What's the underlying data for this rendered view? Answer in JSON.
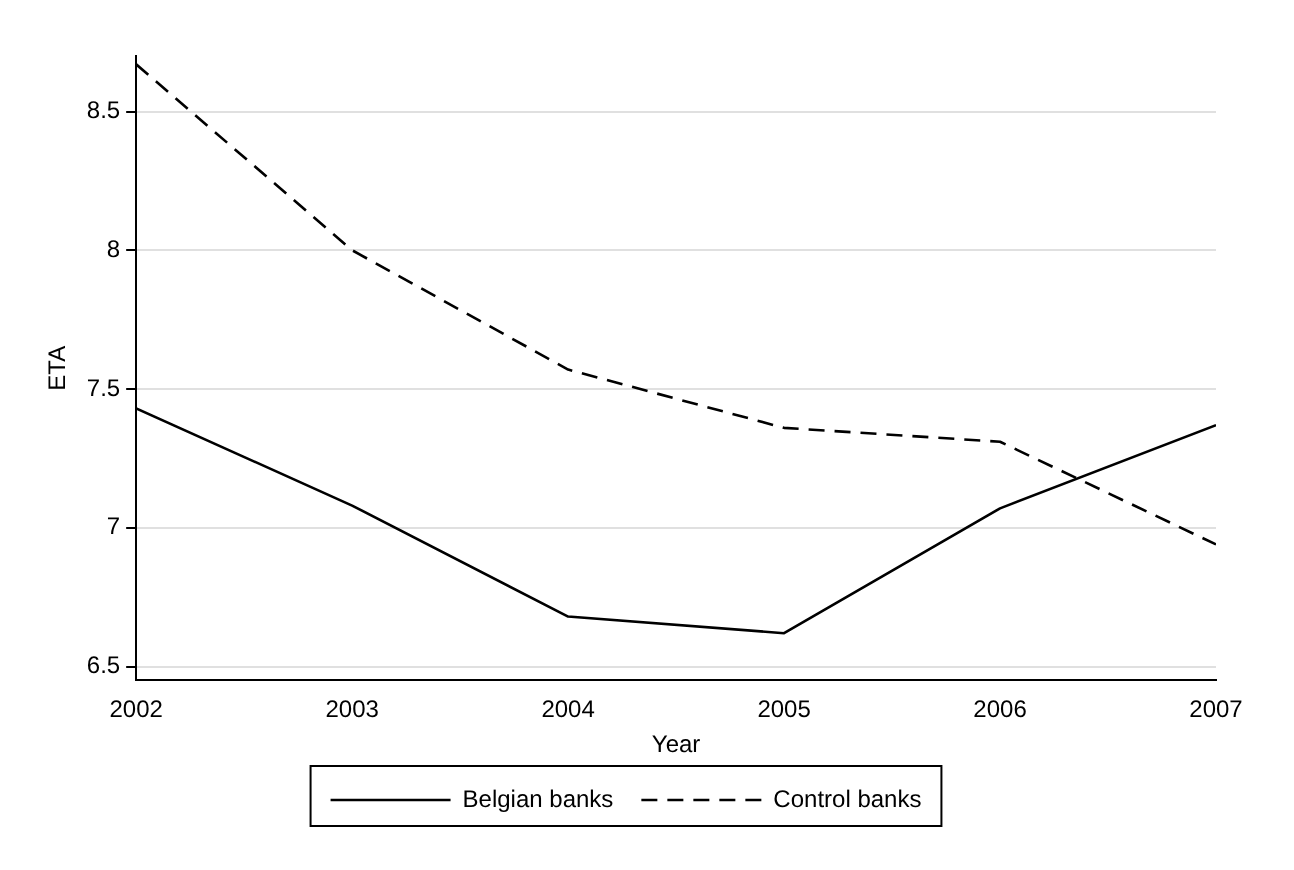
{
  "chart_data": {
    "type": "line",
    "xlabel": "Year",
    "ylabel": "ETA",
    "x": [
      2002,
      2003,
      2004,
      2005,
      2006,
      2007
    ],
    "xlim": [
      2002,
      2007
    ],
    "xticks": [
      2002,
      2003,
      2004,
      2005,
      2006,
      2007
    ],
    "ylim": [
      6.45,
      8.7
    ],
    "yticks": [
      6.5,
      7,
      7.5,
      8,
      8.5
    ],
    "grid": "y",
    "legend": "bottom",
    "marker": "none",
    "series": [
      {
        "name": "Belgian banks",
        "color": "#000000",
        "line_style": "solid",
        "values": [
          7.43,
          7.08,
          6.68,
          6.62,
          7.07,
          7.37
        ]
      },
      {
        "name": "Control banks",
        "color": "#000000",
        "line_style": "dashed",
        "values": [
          8.67,
          8.0,
          7.57,
          7.36,
          7.31,
          6.94
        ]
      }
    ]
  }
}
